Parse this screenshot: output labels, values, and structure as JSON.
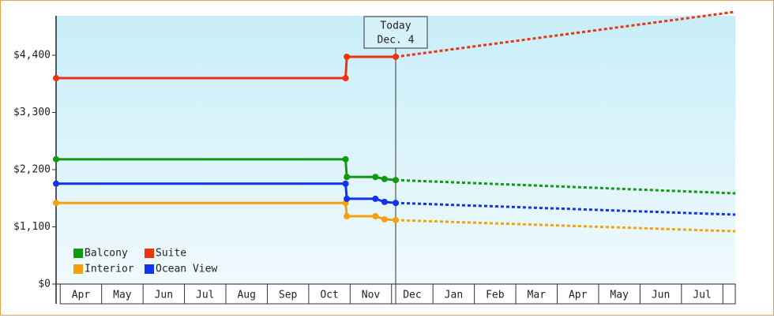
{
  "chart_data": {
    "type": "line",
    "xlim": [
      -0.1,
      16.3
    ],
    "ylim": [
      0,
      5250
    ],
    "xticks": [
      {
        "value": 0.5,
        "label": "Apr"
      },
      {
        "value": 1.5,
        "label": "May"
      },
      {
        "value": 2.5,
        "label": "Jun"
      },
      {
        "value": 3.5,
        "label": "Jul"
      },
      {
        "value": 4.5,
        "label": "Aug"
      },
      {
        "value": 5.5,
        "label": "Sep"
      },
      {
        "value": 6.5,
        "label": "Oct"
      },
      {
        "value": 7.5,
        "label": "Nov"
      },
      {
        "value": 8.5,
        "label": "Dec"
      },
      {
        "value": 9.5,
        "label": "Jan"
      },
      {
        "value": 10.5,
        "label": "Feb"
      },
      {
        "value": 11.5,
        "label": "Mar"
      },
      {
        "value": 12.5,
        "label": "Apr"
      },
      {
        "value": 13.5,
        "label": "May"
      },
      {
        "value": 14.5,
        "label": "Jun"
      },
      {
        "value": 15.5,
        "label": "Jul"
      }
    ],
    "yticks": [
      {
        "value": 0,
        "label": "$0"
      },
      {
        "value": 1100,
        "label": "$1,100"
      },
      {
        "value": 2200,
        "label": "$2,200"
      },
      {
        "value": 3300,
        "label": "$3,300"
      },
      {
        "value": 4400,
        "label": "$4,400"
      }
    ],
    "today": {
      "x": 8.1,
      "lines": [
        "Today",
        "Dec. 4"
      ]
    },
    "legend": "lower left",
    "series": [
      {
        "name": "Balcony",
        "color": "#119911",
        "x": [
          -0.1,
          6.89,
          6.92,
          7.61,
          7.83,
          8.1
        ],
        "values": [
          2400,
          2400,
          2060,
          2060,
          2020,
          2000
        ],
        "projection": {
          "x": [
            8.1,
            16.3
          ],
          "values": [
            2000,
            1745
          ]
        }
      },
      {
        "name": "Suite",
        "color": "#ee3311",
        "x": [
          -0.1,
          6.89,
          6.92,
          8.1
        ],
        "values": [
          3960,
          3960,
          4370,
          4370
        ],
        "projection": {
          "x": [
            8.1,
            16.3
          ],
          "values": [
            4370,
            5235
          ]
        }
      },
      {
        "name": "Interior",
        "color": "#f5a00f",
        "x": [
          -0.1,
          6.89,
          6.92,
          7.61,
          7.83,
          8.1
        ],
        "values": [
          1560,
          1560,
          1305,
          1305,
          1245,
          1230
        ],
        "projection": {
          "x": [
            8.1,
            16.3
          ],
          "values": [
            1230,
            1015
          ]
        }
      },
      {
        "name": "Ocean View",
        "color": "#1133ee",
        "x": [
          -0.1,
          6.89,
          6.92,
          7.61,
          7.83,
          8.1
        ],
        "values": [
          1930,
          1930,
          1640,
          1640,
          1580,
          1560
        ],
        "projection": {
          "x": [
            8.1,
            16.3
          ],
          "values": [
            1560,
            1335
          ]
        }
      }
    ]
  }
}
